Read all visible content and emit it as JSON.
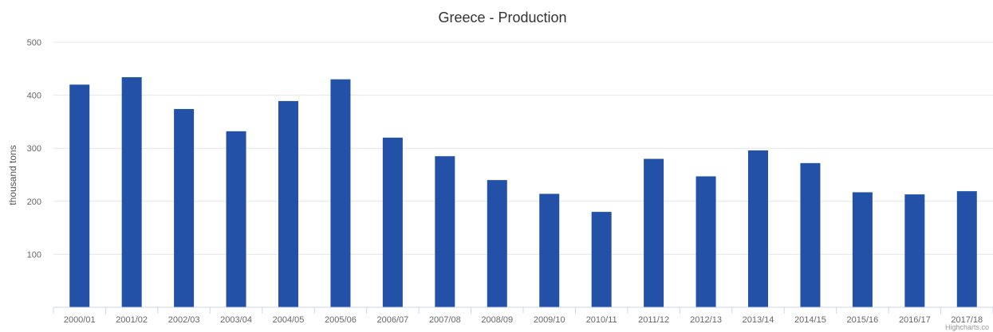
{
  "credits": "Highcharts.co",
  "chart_data": {
    "type": "bar",
    "title": "Greece - Production",
    "xlabel": "",
    "ylabel": "thousand tons",
    "ylim": [
      0,
      500
    ],
    "yticks": [
      100,
      200,
      300,
      400,
      500
    ],
    "grid": true,
    "legend": "none",
    "categories": [
      "2000/01",
      "2001/02",
      "2002/03",
      "2003/04",
      "2004/05",
      "2005/06",
      "2006/07",
      "2007/08",
      "2008/09",
      "2009/10",
      "2010/11",
      "2011/12",
      "2012/13",
      "2013/14",
      "2014/15",
      "2015/16",
      "2016/17",
      "2017/18"
    ],
    "values": [
      420,
      434,
      374,
      332,
      389,
      430,
      320,
      285,
      240,
      214,
      180,
      280,
      247,
      296,
      272,
      217,
      213,
      219
    ],
    "bar_color": "#2351a8"
  }
}
